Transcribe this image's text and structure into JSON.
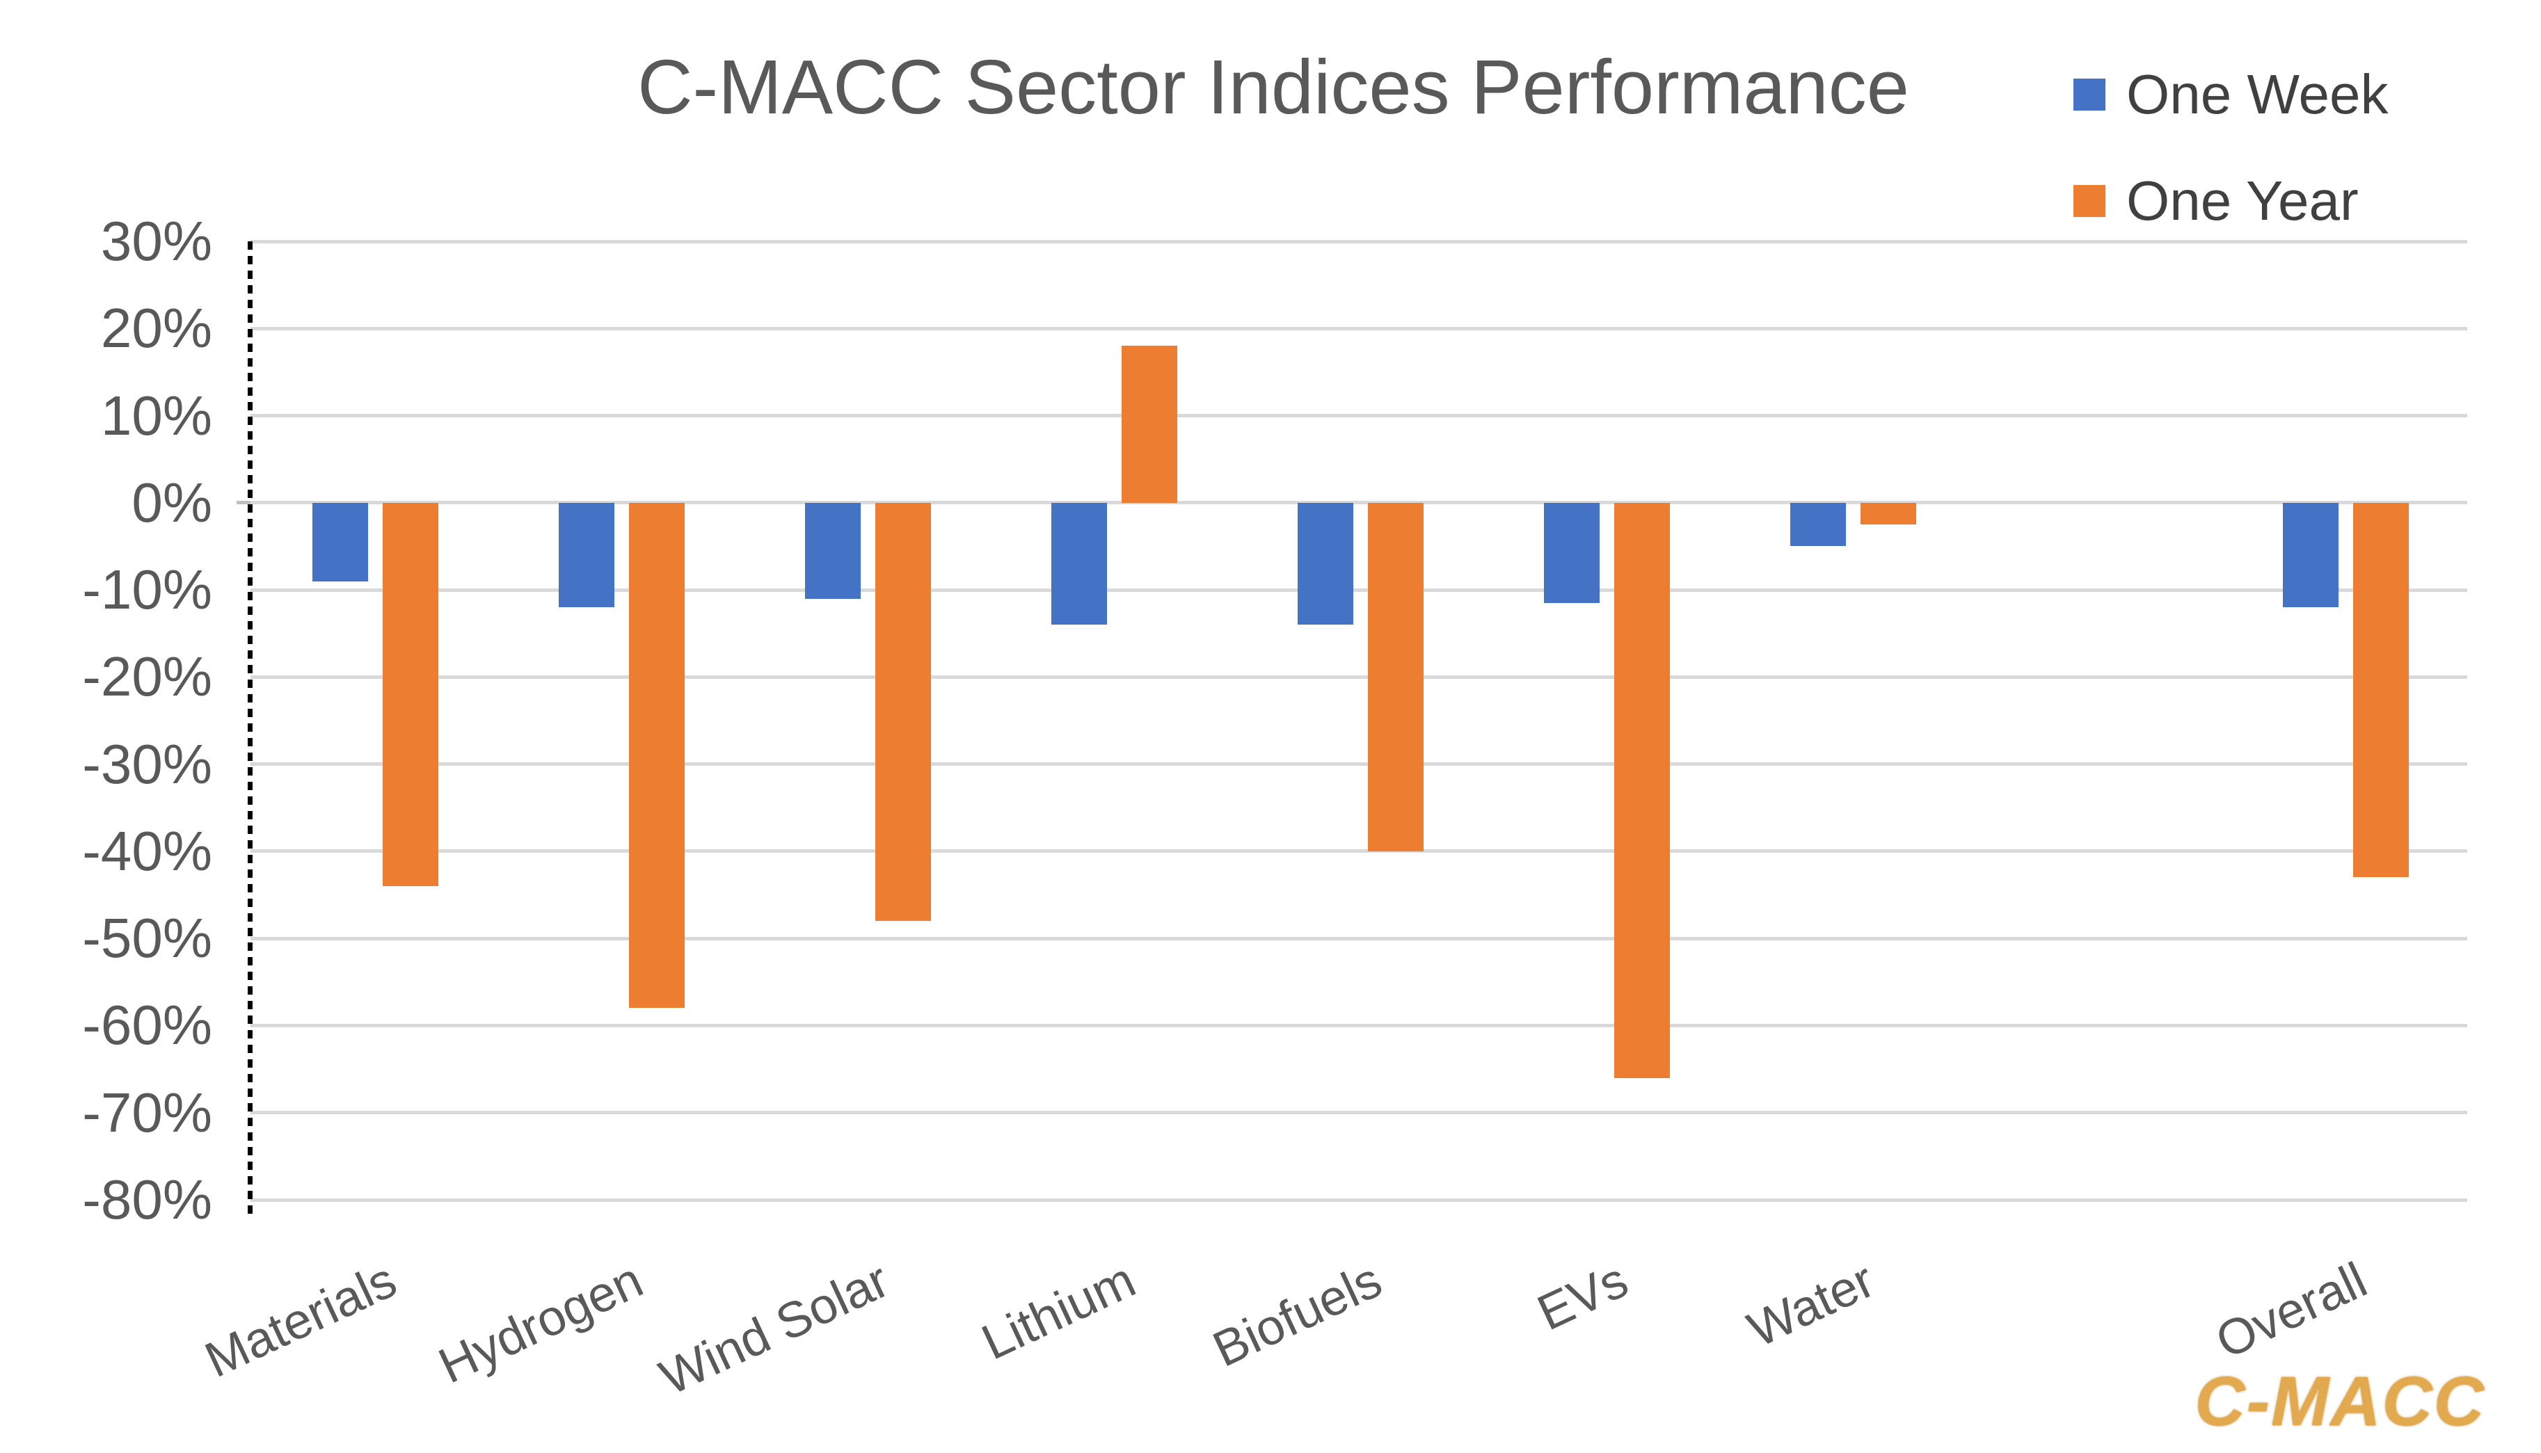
{
  "title": "C-MACC Sector Indices Performance",
  "watermark": "C-MACC",
  "legend": [
    {
      "label": "One Week",
      "color": "#4472C4"
    },
    {
      "label": "One Year",
      "color": "#ED7D31"
    }
  ],
  "colors": {
    "one_week": "#4472C4",
    "one_year": "#ED7D31",
    "gridline": "#D9D9D9",
    "text": "#595959",
    "watermark_gold": "#E2A94F"
  },
  "chart_data": {
    "type": "bar",
    "title": "C-MACC Sector Indices Performance",
    "categories": [
      "Materials",
      "Hydrogen",
      "Wind Solar",
      "Lithium",
      "Biofuels",
      "EVs",
      "Water",
      "Overall"
    ],
    "category_slots": [
      0,
      1,
      2,
      3,
      4,
      5,
      6,
      8
    ],
    "total_slots": 9,
    "series": [
      {
        "name": "One Week",
        "color": "#4472C4",
        "values": [
          -9,
          -12,
          -11,
          -14,
          -14,
          -11.5,
          -5,
          -12
        ]
      },
      {
        "name": "One Year",
        "color": "#ED7D31",
        "values": [
          -44,
          -58,
          -48,
          18,
          -40,
          -66,
          -2.5,
          -43
        ]
      }
    ],
    "ylabel": "",
    "xlabel": "",
    "ylim": [
      -80,
      30
    ],
    "ytick_step": 10,
    "ytick_labels": [
      "30%",
      "20%",
      "10%",
      "0%",
      "-10%",
      "-20%",
      "-30%",
      "-40%",
      "-50%",
      "-60%",
      "-70%",
      "-80%"
    ],
    "grid": true,
    "legend_position": "top-right"
  }
}
